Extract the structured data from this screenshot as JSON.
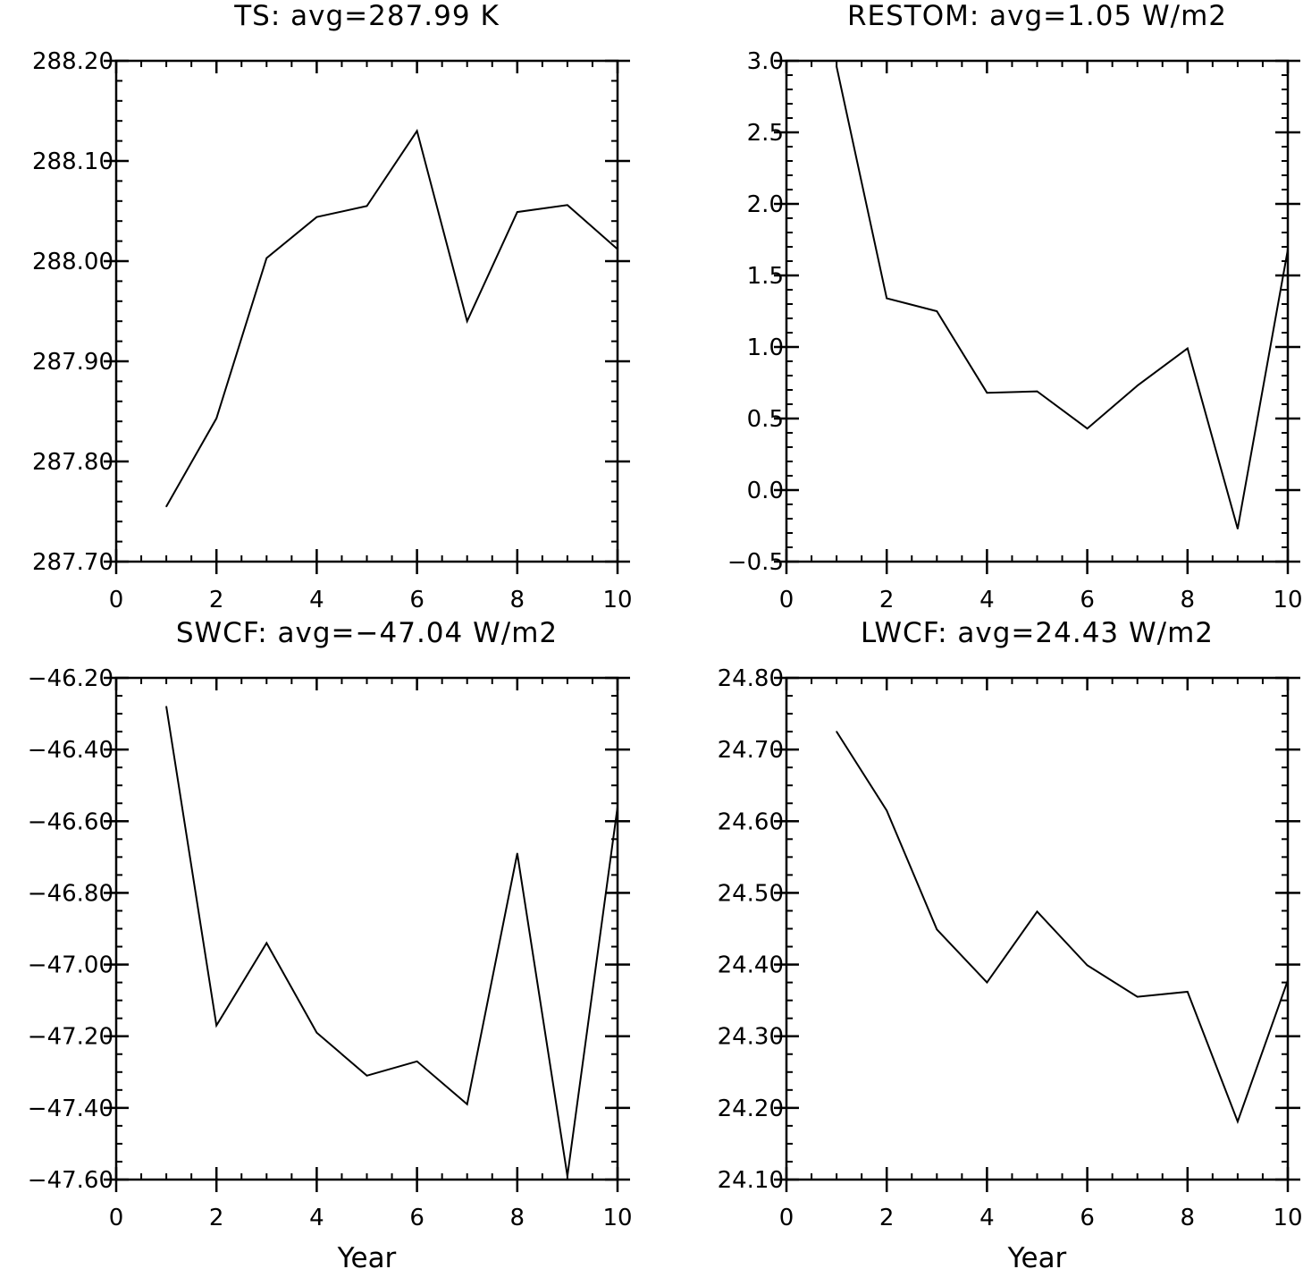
{
  "line_color": "#000000",
  "background": "#ffffff",
  "chart_data": [
    {
      "type": "line",
      "title": "TS: avg=287.99 K",
      "xlabel": "",
      "ylabel": "",
      "xlim": [
        0,
        10
      ],
      "ylim": [
        287.7,
        288.2
      ],
      "xticks": [
        0,
        2,
        4,
        6,
        8,
        10
      ],
      "xtick_labels": [
        "0",
        "2",
        "4",
        "6",
        "8",
        "10"
      ],
      "yticks": [
        287.7,
        287.8,
        287.9,
        288.0,
        288.1,
        288.2
      ],
      "ytick_labels": [
        "287.70",
        "287.80",
        "287.90",
        "288.00",
        "288.10",
        "288.20"
      ],
      "x_minor_step": 0.5,
      "y_minor_step": 0.02,
      "grid": false,
      "series": [
        {
          "x": [
            1,
            2,
            3,
            4,
            5,
            6,
            7,
            8,
            9,
            10
          ],
          "values": [
            287.755,
            287.843,
            288.003,
            288.044,
            288.055,
            288.13,
            287.94,
            288.049,
            288.056,
            288.012
          ]
        }
      ]
    },
    {
      "type": "line",
      "title": "RESTOM: avg=1.05 W/m2",
      "xlabel": "",
      "ylabel": "",
      "xlim": [
        0,
        10
      ],
      "ylim": [
        -0.5,
        3.0
      ],
      "xticks": [
        0,
        2,
        4,
        6,
        8,
        10
      ],
      "xtick_labels": [
        "0",
        "2",
        "4",
        "6",
        "8",
        "10"
      ],
      "yticks": [
        -0.5,
        0.0,
        0.5,
        1.0,
        1.5,
        2.0,
        2.5,
        3.0
      ],
      "ytick_labels": [
        "−0.5",
        "0.0",
        "0.5",
        "1.0",
        "1.5",
        "2.0",
        "2.5",
        "3.0"
      ],
      "x_minor_step": 0.5,
      "y_minor_step": 0.1,
      "grid": false,
      "series": [
        {
          "x": [
            1,
            2,
            3,
            4,
            5,
            6,
            7,
            8,
            9,
            10
          ],
          "values": [
            2.96,
            1.34,
            1.25,
            0.68,
            0.69,
            0.43,
            0.73,
            0.99,
            -0.27,
            1.68
          ]
        }
      ]
    },
    {
      "type": "line",
      "title": "SWCF: avg=−47.04 W/m2",
      "xlabel": "Year",
      "ylabel": "",
      "xlim": [
        0,
        10
      ],
      "ylim": [
        -47.6,
        -46.2
      ],
      "xticks": [
        0,
        2,
        4,
        6,
        8,
        10
      ],
      "xtick_labels": [
        "0",
        "2",
        "4",
        "6",
        "8",
        "10"
      ],
      "yticks": [
        -47.6,
        -47.4,
        -47.2,
        -47.0,
        -46.8,
        -46.6,
        -46.4,
        -46.2
      ],
      "ytick_labels": [
        "−47.60",
        "−47.40",
        "−47.20",
        "−47.00",
        "−46.80",
        "−46.60",
        "−46.40",
        "−46.20"
      ],
      "x_minor_step": 0.5,
      "y_minor_step": 0.05,
      "grid": false,
      "series": [
        {
          "x": [
            1,
            2,
            3,
            4,
            5,
            6,
            7,
            8,
            9,
            10
          ],
          "values": [
            -46.28,
            -47.17,
            -46.94,
            -47.19,
            -47.31,
            -47.27,
            -47.39,
            -46.69,
            -47.59,
            -46.56
          ]
        }
      ]
    },
    {
      "type": "line",
      "title": "LWCF: avg=24.43 W/m2",
      "xlabel": "Year",
      "ylabel": "",
      "xlim": [
        0,
        10
      ],
      "ylim": [
        24.1,
        24.8
      ],
      "xticks": [
        0,
        2,
        4,
        6,
        8,
        10
      ],
      "xtick_labels": [
        "0",
        "2",
        "4",
        "6",
        "8",
        "10"
      ],
      "yticks": [
        24.1,
        24.2,
        24.3,
        24.4,
        24.5,
        24.6,
        24.7,
        24.8
      ],
      "ytick_labels": [
        "24.10",
        "24.20",
        "24.30",
        "24.40",
        "24.50",
        "24.60",
        "24.70",
        "24.80"
      ],
      "x_minor_step": 0.5,
      "y_minor_step": 0.025,
      "grid": false,
      "series": [
        {
          "x": [
            1,
            2,
            3,
            4,
            5,
            6,
            7,
            8,
            9,
            10
          ],
          "values": [
            24.725,
            24.615,
            24.449,
            24.375,
            24.474,
            24.399,
            24.355,
            24.362,
            24.181,
            24.378
          ]
        }
      ]
    }
  ]
}
